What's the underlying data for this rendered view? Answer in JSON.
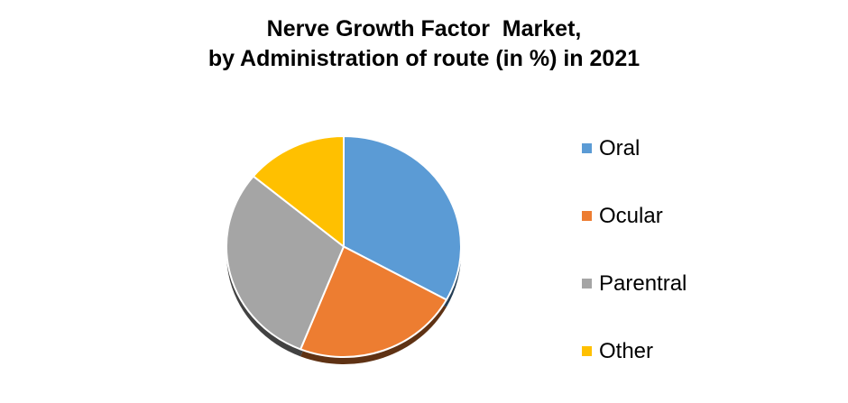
{
  "header": {
    "title_line1": "Nerve Growth Factor  Market,",
    "title_line2": "by Administration of route (in %) in 2021"
  },
  "legend": {
    "items": [
      {
        "label": "Oral",
        "color": "#5B9BD5"
      },
      {
        "label": "Ocular",
        "color": "#ED7D31"
      },
      {
        "label": "Parentral",
        "color": "#A5A5A5"
      },
      {
        "label": "Other",
        "color": "#FFC000"
      }
    ]
  },
  "chart_data": {
    "type": "pie",
    "title": "Nerve Growth Factor  Market,\nby Administration of route (in %) in 2021",
    "categories": [
      "Oral",
      "Ocular",
      "Parentral",
      "Other"
    ],
    "values": [
      33,
      23,
      30,
      14
    ],
    "units": "%",
    "colors": [
      "#5B9BD5",
      "#ED7D31",
      "#A5A5A5",
      "#FFC000"
    ],
    "separator_color": "#FFFFFF",
    "background_color": "#FFFFFF",
    "legend_position": "right",
    "start_angle_deg": 0,
    "direction": "clockwise",
    "effect": "3d-depth-rim"
  }
}
